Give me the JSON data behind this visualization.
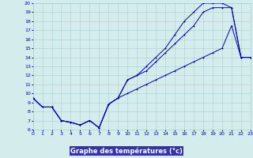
{
  "xlabel": "Graphe des températures (°c)",
  "xlim": [
    0,
    23
  ],
  "ylim": [
    6,
    20
  ],
  "xticks": [
    0,
    1,
    2,
    3,
    4,
    5,
    6,
    7,
    8,
    9,
    10,
    11,
    12,
    13,
    14,
    15,
    16,
    17,
    18,
    19,
    20,
    21,
    22,
    23
  ],
  "yticks": [
    6,
    7,
    8,
    9,
    10,
    11,
    12,
    13,
    14,
    15,
    16,
    17,
    18,
    19,
    20
  ],
  "background_color": "#d4ecec",
  "grid_color": "#aad0d0",
  "line_color": "#0000bb",
  "xlabel_bg": "#3333aa",
  "xlabel_fg": "#ffffff",
  "line1_x": [
    0,
    1,
    2,
    3,
    4,
    5,
    6,
    7,
    8,
    9,
    10,
    11,
    12,
    13,
    14,
    15,
    16,
    17,
    18,
    19,
    20,
    21,
    22,
    23
  ],
  "line1_y": [
    9.5,
    8.5,
    8.5,
    7.0,
    6.8,
    6.5,
    7.0,
    6.2,
    8.8,
    9.5,
    11.5,
    12.0,
    12.5,
    13.5,
    14.5,
    15.5,
    16.5,
    17.5,
    19.0,
    19.5,
    19.5,
    19.5,
    14.0,
    14.0
  ],
  "line2_x": [
    0,
    1,
    2,
    3,
    4,
    5,
    6,
    7,
    8,
    9,
    10,
    11,
    12,
    13,
    14,
    15,
    16,
    17,
    18,
    19,
    20,
    21,
    22,
    23
  ],
  "line2_y": [
    9.5,
    8.5,
    8.5,
    7.0,
    6.8,
    6.5,
    7.0,
    6.2,
    8.8,
    9.5,
    11.5,
    12.0,
    13.0,
    14.0,
    15.0,
    16.5,
    18.0,
    19.0,
    20.0,
    20.0,
    20.0,
    19.5,
    14.0,
    14.0
  ],
  "line3_x": [
    0,
    1,
    2,
    3,
    4,
    5,
    6,
    7,
    8,
    9,
    10,
    11,
    12,
    13,
    14,
    15,
    16,
    17,
    18,
    19,
    20,
    21,
    22,
    23
  ],
  "line3_y": [
    9.5,
    8.5,
    8.5,
    7.0,
    6.8,
    6.5,
    7.0,
    6.2,
    8.8,
    9.5,
    10.0,
    10.5,
    11.0,
    11.5,
    12.0,
    12.5,
    13.0,
    13.5,
    14.0,
    14.5,
    15.0,
    17.5,
    14.0,
    14.0
  ]
}
